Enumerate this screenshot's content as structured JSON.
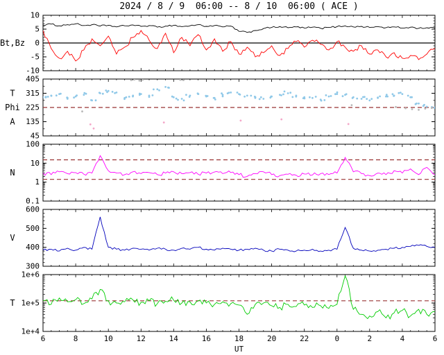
{
  "chart_data": {
    "type": "line",
    "title": "2024 / 8 / 9  06:00 -- 8 / 10  06:00 ( ACE )",
    "xlabel": "UT",
    "x_range": [
      6,
      30
    ],
    "x_tick_step": 2,
    "x_tick_labels": [
      "6",
      "8",
      "10",
      "12",
      "14",
      "16",
      "18",
      "20",
      "22",
      "0",
      "2",
      "4",
      "6"
    ],
    "legend": "none",
    "grid": "off",
    "panels": [
      {
        "name": "magnetic-field",
        "ylabels": [
          {
            "text": "Bt,Bz",
            "y": 0
          }
        ],
        "scale": "linear",
        "ylim": [
          -10,
          10
        ],
        "ytick_vals": [
          -10,
          -5,
          0,
          5,
          10
        ],
        "ytick_labels": [
          "-10",
          "-5",
          "0",
          "5",
          "10"
        ],
        "yminor": 1,
        "hlines": [
          {
            "y": 0,
            "style": "solid",
            "color": "#000000"
          }
        ],
        "series": [
          {
            "name": "Bt",
            "type": "line",
            "color": "#000000",
            "jitter": 0.3,
            "values": [
              6.5,
              6.8,
              6.2,
              6.6,
              6.9,
              6.3,
              6.6,
              6.1,
              6.4,
              5.8,
              6.2,
              6.5,
              6.0,
              6.3,
              5.7,
              6.1,
              6.4,
              5.9,
              6.2,
              6.6,
              6.0,
              6.3,
              5.8,
              6.1,
              4.2,
              3.8,
              4.5,
              5.2,
              5.6,
              5.9,
              5.5,
              5.8,
              5.4,
              5.7,
              5.3,
              5.6,
              5.9,
              6.2,
              5.8,
              6.0,
              5.6,
              5.9,
              5.5,
              5.8,
              5.4,
              5.7,
              5.3,
              5.5,
              5.4
            ]
          },
          {
            "name": "Bz",
            "type": "line",
            "color": "#ff0000",
            "jitter": 0.9,
            "values": [
              4.5,
              -2,
              -5.5,
              -3,
              -6.5,
              -2.5,
              1.5,
              -1,
              2.5,
              -4,
              -1.5,
              2,
              4.5,
              1,
              -2,
              3.5,
              -3.5,
              2,
              -1,
              3,
              -2.5,
              1.5,
              -3,
              0.5,
              -4,
              -1.5,
              -5,
              -3.5,
              -1,
              -4.5,
              -2,
              0.5,
              -1.5,
              1,
              -0.5,
              -2.5,
              0.5,
              -1.5,
              -3,
              -1,
              -4,
              -2.5,
              -5,
              -3.5,
              -5.5,
              -4.5,
              -6,
              -4,
              -2
            ]
          }
        ]
      },
      {
        "name": "phi-angle",
        "ylabels": [
          {
            "text": "T",
            "y": 315
          },
          {
            "text": "Phi",
            "y": 225
          },
          {
            "text": "A",
            "y": 135
          }
        ],
        "scale": "linear",
        "ylim": [
          45,
          405
        ],
        "ytick_vals": [
          45,
          135,
          225,
          315,
          405
        ],
        "ytick_labels": [
          "45",
          "135",
          "225",
          "315",
          "405"
        ],
        "yminor": 45,
        "hlines": [
          {
            "y": 225,
            "style": "dashed",
            "color": "#993333"
          }
        ],
        "series": [
          {
            "name": "Phi",
            "type": "scatter",
            "color": "#8fc8e8",
            "spread_x": 0.25,
            "spread_y": 12,
            "extra": 2,
            "values": [
              290,
              300,
              310,
              280,
              295,
              305,
              270,
              315,
              330,
              320,
              285,
              295,
              310,
              300,
              340,
              355,
              290,
              280,
              300,
              310,
              295,
              285,
              305,
              320,
              310,
              300,
              290,
              280,
              295,
              305,
              315,
              300,
              290,
              285,
              275,
              295,
              310,
              305,
              290,
              280,
              270,
              285,
              295,
              300,
              310,
              290,
              250,
              230,
              225
            ]
          },
          {
            "name": "Phi-secondary",
            "type": "scatter_xy",
            "color": "#b8b8b8",
            "points": [
              [
                11.4,
                398
              ],
              [
                11.6,
                402
              ],
              [
                11.9,
                395
              ],
              [
                12.1,
                400
              ],
              [
                14.4,
                400
              ],
              [
                14.6,
                398
              ],
              [
                8.4,
                200
              ],
              [
                24.9,
                240
              ],
              [
                27.6,
                228
              ],
              [
                28.2,
                220
              ],
              [
                28.6,
                214
              ],
              [
                29.0,
                210
              ],
              [
                29.4,
                218
              ],
              [
                29.8,
                222
              ]
            ]
          },
          {
            "name": "Phi-low",
            "type": "scatter_xy",
            "color": "#f4a6c8",
            "points": [
              [
                8.9,
                118
              ],
              [
                9.1,
                92
              ],
              [
                13.4,
                130
              ],
              [
                18.1,
                142
              ],
              [
                20.6,
                150
              ],
              [
                24.7,
                120
              ]
            ]
          }
        ]
      },
      {
        "name": "density",
        "ylabels": [
          {
            "text": "N",
            "y": 3.16
          }
        ],
        "scale": "log",
        "ylim": [
          0.1,
          100
        ],
        "ytick_vals": [
          0.1,
          1,
          10,
          100
        ],
        "ytick_labels": [
          "0.1",
          "1",
          "10",
          "100"
        ],
        "hlines": [
          {
            "y": 15,
            "style": "dashed",
            "color": "#993333"
          },
          {
            "y": 1.4,
            "style": "dashed",
            "color": "#993333"
          }
        ],
        "series": [
          {
            "name": "N",
            "type": "line",
            "color": "#ff00ff",
            "jitter": 0.1,
            "values": [
              3,
              2.5,
              3.5,
              2.8,
              3.2,
              2.6,
              3,
              25,
              4,
              3,
              2.5,
              3.5,
              2.8,
              3.2,
              2.5,
              3,
              3.5,
              2.8,
              3.2,
              2.6,
              3,
              3.4,
              2.8,
              3.2,
              2.5,
              2,
              2.8,
              3.5,
              2.5,
              2.2,
              2.6,
              2.3,
              2.7,
              2.4,
              2.8,
              2.5,
              3,
              20,
              3.5,
              2.8,
              2.2,
              3,
              2.5,
              4,
              3,
              5,
              2.5,
              6,
              2.5
            ]
          }
        ]
      },
      {
        "name": "speed",
        "ylabels": [
          {
            "text": "V",
            "y": 450
          }
        ],
        "scale": "linear",
        "ylim": [
          300,
          600
        ],
        "ytick_vals": [
          300,
          400,
          500,
          600
        ],
        "ytick_labels": [
          "300",
          "400",
          "500",
          "600"
        ],
        "yminor": 20,
        "hlines": [],
        "series": [
          {
            "name": "V",
            "type": "line",
            "color": "#0000bb",
            "jitter": 6,
            "values": [
              385,
              390,
              380,
              395,
              385,
              400,
              390,
              560,
              400,
              390,
              385,
              395,
              390,
              385,
              395,
              390,
              385,
              395,
              390,
              400,
              390,
              385,
              395,
              390,
              385,
              390,
              395,
              385,
              380,
              390,
              385,
              380,
              385,
              390,
              380,
              385,
              390,
              505,
              395,
              385,
              380,
              385,
              390,
              395,
              400,
              405,
              410,
              405,
              400
            ]
          }
        ]
      },
      {
        "name": "temperature",
        "ylabels": [
          {
            "text": "T",
            "y": 100000
          }
        ],
        "scale": "log",
        "ylim": [
          10000,
          1000000
        ],
        "ytick_vals": [
          10000,
          100000,
          1000000
        ],
        "ytick_labels": [
          "1e+4",
          "1e+5",
          "1e+6"
        ],
        "hlines": [
          {
            "y": 120000,
            "style": "dashed",
            "color": "#993333"
          }
        ],
        "series": [
          {
            "name": "T",
            "type": "line",
            "color": "#00cc00",
            "jitter": 0.13,
            "values": [
              120000.0,
              90000.0,
              150000.0,
              110000.0,
              130000.0,
              95000.0,
              140000.0,
              300000.0,
              120000.0,
              100000.0,
              110000.0,
              130000.0,
              105000.0,
              120000.0,
              95000.0,
              115000.0,
              125000.0,
              100000.0,
              110000.0,
              120000.0,
              100000.0,
              90000.0,
              110000.0,
              95000.0,
              85000.0,
              40000.0,
              90000.0,
              100000.0,
              80000.0,
              70000.0,
              90000.0,
              75000.0,
              85000.0,
              70000.0,
              80000.0,
              65000.0,
              90000.0,
              900000.0,
              60000.0,
              40000.0,
              35000.0,
              50000.0,
              30000.0,
              45000.0,
              55000.0,
              35000.0,
              60000.0,
              40000.0,
              50000.0
            ]
          }
        ]
      }
    ]
  }
}
